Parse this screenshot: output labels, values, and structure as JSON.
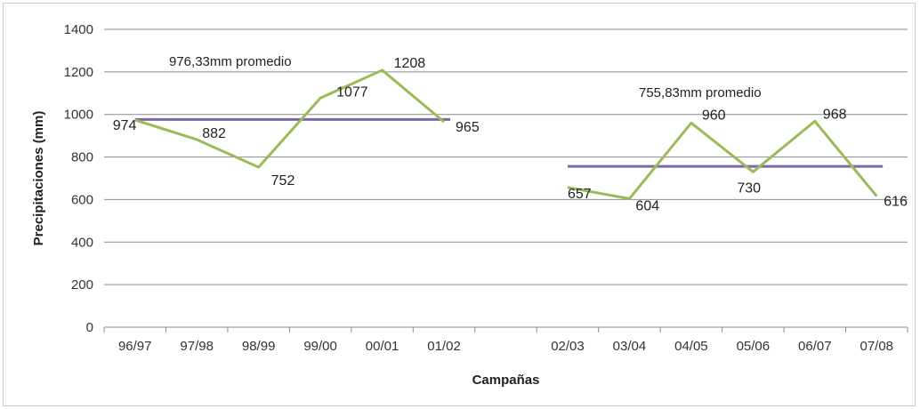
{
  "chart_data": {
    "type": "line",
    "xlabel": "Campañas",
    "ylabel": "Precipitaciones (mm)",
    "ylim": [
      0,
      1400
    ],
    "yticks": [
      "0",
      "200",
      "400",
      "600",
      "800",
      "1000",
      "1200",
      "1400"
    ],
    "grid": true,
    "categories": [
      "96/97",
      "97/98",
      "98/99",
      "99/00",
      "00/01",
      "01/02",
      "",
      "02/03",
      "03/04",
      "04/05",
      "05/06",
      "06/07",
      "07/08"
    ],
    "series": [
      {
        "color": "#9bbb59",
        "values": [
          974,
          882,
          752,
          1077,
          1208,
          965,
          null,
          657,
          604,
          960,
          730,
          968,
          616
        ],
        "labels": [
          "974",
          "882",
          "752",
          "1077",
          "1208",
          "965",
          "",
          "657",
          "604",
          "960",
          "730",
          "968",
          "616"
        ]
      }
    ],
    "averages": [
      {
        "value": 976.33,
        "from": "96/97",
        "to": "01/02",
        "label": "976,33mm promedio",
        "color": "#7b68a6"
      },
      {
        "value": 755.83,
        "from": "02/03",
        "to": "07/08",
        "label": "755,83mm  promedio",
        "color": "#7b68a6"
      }
    ]
  }
}
